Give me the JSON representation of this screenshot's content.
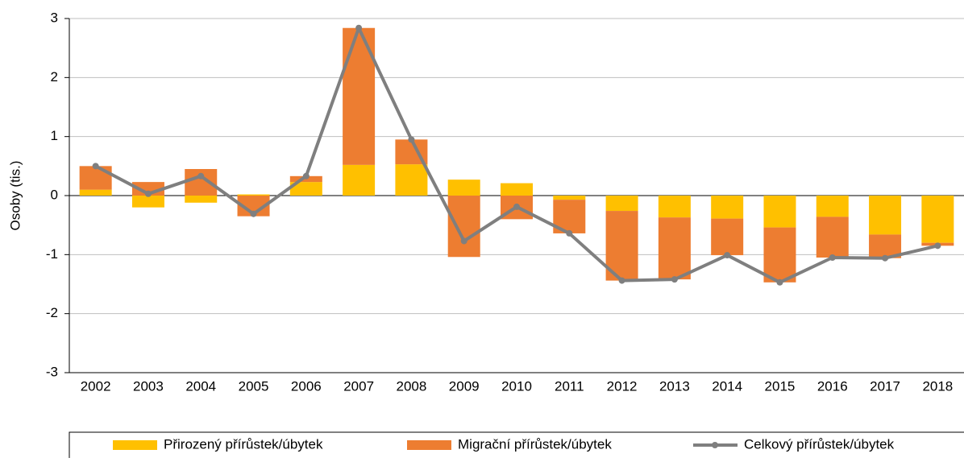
{
  "chart_data": {
    "type": "bar",
    "categories": [
      "2002",
      "2003",
      "2004",
      "2005",
      "2006",
      "2007",
      "2008",
      "2009",
      "2010",
      "2011",
      "2012",
      "2013",
      "2014",
      "2015",
      "2016",
      "2017",
      "2018"
    ],
    "y_label": "Osoby (tis.)",
    "ylim": [
      -3,
      3
    ],
    "yticks": [
      -3,
      -2,
      -1,
      0,
      1,
      2,
      3
    ],
    "grid": true,
    "stacked": true,
    "legend": "bottom",
    "series": [
      {
        "name": "Přirozený přírůstek/úbytek",
        "type": "bar",
        "color": "#ffc000",
        "values": [
          0.1,
          -0.2,
          -0.12,
          0.02,
          0.23,
          0.52,
          0.53,
          0.27,
          0.21,
          -0.07,
          -0.26,
          -0.37,
          -0.39,
          -0.54,
          -0.36,
          -0.66,
          -0.8
        ]
      },
      {
        "name": "Migrační přírůstek/úbytek",
        "type": "bar",
        "color": "#ed7d31",
        "values": [
          0.4,
          0.23,
          0.45,
          -0.35,
          0.1,
          2.32,
          0.42,
          -1.04,
          -0.4,
          -0.57,
          -1.18,
          -1.05,
          -0.62,
          -0.93,
          -0.69,
          -0.4,
          -0.05
        ]
      },
      {
        "name": "Celkový přírůstek/úbytek",
        "type": "line",
        "color": "#7f7f7f",
        "values": [
          0.5,
          0.03,
          0.33,
          -0.31,
          0.33,
          2.84,
          0.95,
          -0.77,
          -0.19,
          -0.64,
          -1.44,
          -1.42,
          -1.01,
          -1.47,
          -1.05,
          -1.06,
          -0.85
        ]
      }
    ]
  }
}
